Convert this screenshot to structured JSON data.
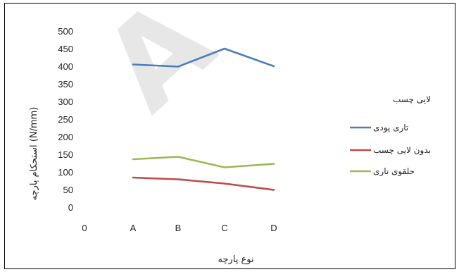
{
  "chart_data": {
    "type": "line",
    "title": "",
    "xlabel": "نوع پارچه",
    "ylabel": "استحکام پارچه (N/mm)",
    "categories": [
      "0",
      "A",
      "B",
      "C",
      "D"
    ],
    "ylim": [
      0,
      500
    ],
    "y_ticks": [
      "500",
      "450",
      "400",
      "350",
      "300",
      "250",
      "200",
      "150",
      "100",
      "50",
      "0"
    ],
    "grid": false,
    "legend_title": "لایی چسب",
    "legend_position": "right",
    "series": [
      {
        "name": "تاری پودی",
        "color": "#4a7ebb",
        "values": [
          null,
          405,
          399,
          450,
          400
        ]
      },
      {
        "name": "بدون لایی چسب",
        "color": "#be4b48",
        "values": [
          null,
          84,
          79,
          67,
          49
        ]
      },
      {
        "name": "حلقوی تاری",
        "color": "#98b954",
        "values": [
          null,
          136,
          143,
          113,
          123
        ]
      }
    ]
  },
  "watermark": "A"
}
